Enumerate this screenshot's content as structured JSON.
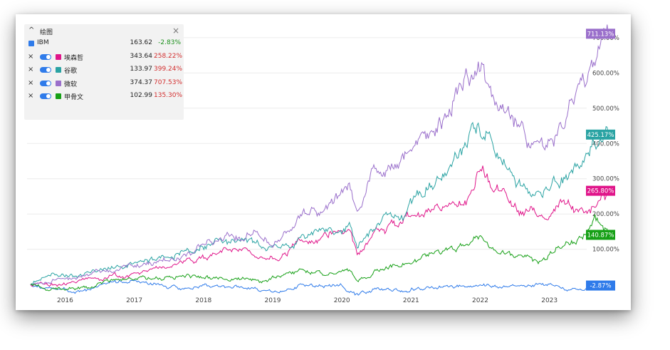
{
  "legend": {
    "title": "绘图",
    "rows": [
      {
        "name": "IBM",
        "value": "163.62",
        "pct": "-2.83%",
        "pct_color": "#1a8f1a",
        "color": "#2f7bea"
      },
      {
        "name": "埃森哲",
        "value": "343.64",
        "pct": "258.22%",
        "pct_color": "#d32f2f",
        "color": "#e0158a"
      },
      {
        "name": "谷歌",
        "value": "133.97",
        "pct": "399.24%",
        "pct_color": "#d32f2f",
        "color": "#2aa3a3"
      },
      {
        "name": "微软",
        "value": "374.37",
        "pct": "707.53%",
        "pct_color": "#d32f2f",
        "color": "#9a6fcb"
      },
      {
        "name": "甲骨文",
        "value": "102.99",
        "pct": "135.30%",
        "pct_color": "#d32f2f",
        "color": "#16a016"
      }
    ]
  },
  "chart_data": {
    "type": "line",
    "y_unit": "%",
    "xlim": [
      2015.45,
      2023.95
    ],
    "ylim": [
      -30,
      730
    ],
    "x_ticks": [
      {
        "x": 2016.0,
        "label": "2016"
      },
      {
        "x": 2017.0,
        "label": "2017"
      },
      {
        "x": 2018.0,
        "label": "2018"
      },
      {
        "x": 2019.0,
        "label": "2019"
      },
      {
        "x": 2020.0,
        "label": "2020"
      },
      {
        "x": 2021.0,
        "label": "2021"
      },
      {
        "x": 2022.0,
        "label": "2022"
      },
      {
        "x": 2023.0,
        "label": "2023"
      }
    ],
    "y_ticks": [
      {
        "y": 100,
        "label": "100.00%"
      },
      {
        "y": 200,
        "label": "200.00%"
      },
      {
        "y": 300,
        "label": "300.00%"
      },
      {
        "y": 400,
        "label": "400.00%"
      },
      {
        "y": 500,
        "label": "500.00%"
      },
      {
        "y": 600,
        "label": "600.00%"
      },
      {
        "y": 700,
        "label": "700.00%"
      }
    ],
    "series": [
      {
        "name": "IBM",
        "color": "#2f7bea",
        "end_label": "-2.87%",
        "points": [
          [
            2015.5,
            0
          ],
          [
            2015.8,
            -8
          ],
          [
            2016.2,
            -18
          ],
          [
            2016.6,
            5
          ],
          [
            2017.0,
            12
          ],
          [
            2017.3,
            0
          ],
          [
            2017.6,
            -8
          ],
          [
            2018.0,
            -4
          ],
          [
            2018.4,
            -6
          ],
          [
            2018.8,
            -12
          ],
          [
            2019.0,
            -20
          ],
          [
            2019.4,
            -5
          ],
          [
            2019.8,
            -6
          ],
          [
            2020.0,
            -8
          ],
          [
            2020.22,
            -35
          ],
          [
            2020.5,
            -15
          ],
          [
            2020.9,
            -14
          ],
          [
            2021.3,
            -5
          ],
          [
            2021.8,
            -8
          ],
          [
            2022.2,
            -2
          ],
          [
            2022.6,
            -4
          ],
          [
            2022.9,
            0
          ],
          [
            2023.2,
            -10
          ],
          [
            2023.6,
            -6
          ],
          [
            2023.85,
            -2.87
          ]
        ]
      },
      {
        "name": "埃森哲",
        "color": "#e0158a",
        "end_label": "265.80%",
        "points": [
          [
            2015.5,
            0
          ],
          [
            2015.8,
            2
          ],
          [
            2016.2,
            8
          ],
          [
            2016.6,
            20
          ],
          [
            2017.0,
            32
          ],
          [
            2017.4,
            48
          ],
          [
            2017.8,
            66
          ],
          [
            2018.1,
            85
          ],
          [
            2018.5,
            95
          ],
          [
            2018.9,
            80
          ],
          [
            2019.1,
            90
          ],
          [
            2019.5,
            125
          ],
          [
            2019.9,
            145
          ],
          [
            2020.1,
            160
          ],
          [
            2020.22,
            80
          ],
          [
            2020.5,
            150
          ],
          [
            2020.9,
            175
          ],
          [
            2021.3,
            210
          ],
          [
            2021.8,
            240
          ],
          [
            2021.98,
            330
          ],
          [
            2022.2,
            270
          ],
          [
            2022.6,
            210
          ],
          [
            2022.9,
            190
          ],
          [
            2023.2,
            220
          ],
          [
            2023.55,
            210
          ],
          [
            2023.85,
            265.8
          ]
        ]
      },
      {
        "name": "谷歌",
        "color": "#2aa3a3",
        "end_label": "425.17%",
        "points": [
          [
            2015.5,
            0
          ],
          [
            2015.7,
            30
          ],
          [
            2016.1,
            25
          ],
          [
            2016.5,
            35
          ],
          [
            2017.0,
            60
          ],
          [
            2017.4,
            75
          ],
          [
            2017.8,
            95
          ],
          [
            2018.1,
            120
          ],
          [
            2018.5,
            125
          ],
          [
            2018.9,
            105
          ],
          [
            2019.1,
            110
          ],
          [
            2019.5,
            135
          ],
          [
            2019.9,
            170
          ],
          [
            2020.1,
            190
          ],
          [
            2020.22,
            110
          ],
          [
            2020.5,
            180
          ],
          [
            2020.9,
            210
          ],
          [
            2021.3,
            290
          ],
          [
            2021.8,
            400
          ],
          [
            2021.97,
            460
          ],
          [
            2022.2,
            380
          ],
          [
            2022.5,
            300
          ],
          [
            2022.9,
            240
          ],
          [
            2023.2,
            300
          ],
          [
            2023.6,
            380
          ],
          [
            2023.85,
            425.17
          ]
        ]
      },
      {
        "name": "微软",
        "color": "#9a6fcb",
        "end_label": "711.13%",
        "points": [
          [
            2015.5,
            0
          ],
          [
            2015.8,
            15
          ],
          [
            2016.2,
            20
          ],
          [
            2016.6,
            30
          ],
          [
            2017.0,
            50
          ],
          [
            2017.4,
            65
          ],
          [
            2017.8,
            90
          ],
          [
            2018.1,
            120
          ],
          [
            2018.5,
            150
          ],
          [
            2018.8,
            140
          ],
          [
            2019.0,
            120
          ],
          [
            2019.5,
            200
          ],
          [
            2019.9,
            230
          ],
          [
            2020.1,
            290
          ],
          [
            2020.22,
            190
          ],
          [
            2020.5,
            330
          ],
          [
            2020.9,
            370
          ],
          [
            2021.3,
            430
          ],
          [
            2021.8,
            580
          ],
          [
            2021.95,
            630
          ],
          [
            2022.2,
            520
          ],
          [
            2022.6,
            430
          ],
          [
            2022.85,
            380
          ],
          [
            2023.1,
            420
          ],
          [
            2023.5,
            560
          ],
          [
            2023.75,
            660
          ],
          [
            2023.85,
            711.13
          ]
        ]
      },
      {
        "name": "甲骨文",
        "color": "#16a016",
        "end_label": "140.87%",
        "points": [
          [
            2015.5,
            0
          ],
          [
            2015.8,
            -10
          ],
          [
            2016.2,
            -8
          ],
          [
            2016.6,
            5
          ],
          [
            2017.0,
            15
          ],
          [
            2017.4,
            20
          ],
          [
            2017.8,
            25
          ],
          [
            2018.1,
            20
          ],
          [
            2018.5,
            18
          ],
          [
            2018.9,
            10
          ],
          [
            2019.1,
            25
          ],
          [
            2019.5,
            35
          ],
          [
            2019.9,
            30
          ],
          [
            2020.1,
            35
          ],
          [
            2020.22,
            10
          ],
          [
            2020.5,
            45
          ],
          [
            2020.9,
            60
          ],
          [
            2021.3,
            90
          ],
          [
            2021.8,
            110
          ],
          [
            2021.98,
            135
          ],
          [
            2022.2,
            100
          ],
          [
            2022.6,
            80
          ],
          [
            2022.85,
            65
          ],
          [
            2023.1,
            100
          ],
          [
            2023.5,
            140
          ],
          [
            2023.65,
            190
          ],
          [
            2023.85,
            140.87
          ]
        ]
      }
    ]
  }
}
